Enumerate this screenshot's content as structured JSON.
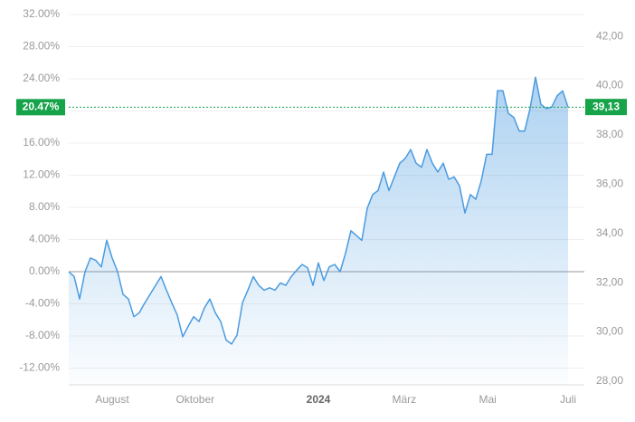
{
  "chart_data": {
    "type": "area",
    "values": [
      0,
      -0.6,
      -3.4,
      0,
      1.7,
      1.4,
      0.6,
      3.9,
      1.7,
      0,
      -2.8,
      -3.4,
      -5.6,
      -5.1,
      -3.9,
      -2.8,
      -1.7,
      -0.6,
      -2.3,
      -3.9,
      -5.4,
      -8.1,
      -6.8,
      -5.6,
      -6.2,
      -4.5,
      -3.4,
      -5.1,
      -6.2,
      -8.5,
      -9.0,
      -7.9,
      -3.9,
      -2.3,
      -0.6,
      -1.7,
      -2.3,
      -2.0,
      -2.3,
      -1.4,
      -1.7,
      -0.6,
      0.2,
      0.9,
      0.5,
      -1.7,
      1.1,
      -1.1,
      0.6,
      0.9,
      0,
      2.3,
      5.1,
      4.5,
      3.9,
      7.9,
      9.6,
      10.1,
      12.4,
      10.1,
      11.8,
      13.5,
      14.1,
      15.2,
      13.5,
      13.0,
      15.2,
      13.5,
      12.4,
      13.5,
      11.5,
      11.8,
      10.7,
      7.3,
      9.6,
      9.0,
      11.3,
      14.6,
      14.6,
      22.5,
      22.5,
      19.7,
      19.2,
      17.5,
      17.5,
      20.3,
      24.2,
      20.8,
      20.3,
      20.5,
      21.9,
      22.5,
      20.47
    ],
    "color": "#4a9be0",
    "xlim": [
      0,
      95
    ],
    "xticks": [
      {
        "value": 8,
        "label": "August"
      },
      {
        "value": 23.3,
        "label": "Oktober"
      },
      {
        "value": 46,
        "label": "2024",
        "bold": true
      },
      {
        "value": 61.8,
        "label": "März"
      },
      {
        "value": 77.2,
        "label": "Mai"
      },
      {
        "value": 92,
        "label": "Juli"
      }
    ],
    "ylim": [
      -14.08,
      33.24
    ],
    "yticks": [
      {
        "value": 32,
        "label": "32.00%"
      },
      {
        "value": 28,
        "label": "28.00%"
      },
      {
        "value": 24,
        "label": "24.00%"
      },
      {
        "value": 20,
        "label": "20.00%"
      },
      {
        "value": 16,
        "label": "16.00%"
      },
      {
        "value": 12,
        "label": "12.00%"
      },
      {
        "value": 8,
        "label": "8.00%"
      },
      {
        "value": 4,
        "label": "4.00%"
      },
      {
        "value": 0,
        "label": "0.00%"
      },
      {
        "value": -4,
        "label": "-4.00%"
      },
      {
        "value": -8,
        "label": "-8.00%"
      },
      {
        "value": -12,
        "label": "-12.00%"
      }
    ],
    "y2lim": [
      27.85,
      43.29
    ],
    "y2ticks": [
      {
        "value": 42,
        "label": "42,00"
      },
      {
        "value": 40,
        "label": "40,00"
      },
      {
        "value": 38,
        "label": "38,00"
      },
      {
        "value": 36,
        "label": "36,00"
      },
      {
        "value": 34,
        "label": "34,00"
      },
      {
        "value": 32,
        "label": "32,00"
      },
      {
        "value": 30,
        "label": "30,00"
      },
      {
        "value": 28,
        "label": "28,00"
      }
    ],
    "current": {
      "value": 20.47,
      "label": "20.47%"
    },
    "current_price": {
      "value": 39.13,
      "label": "39,13"
    },
    "marker_color": "#17a34a",
    "grid": true
  }
}
